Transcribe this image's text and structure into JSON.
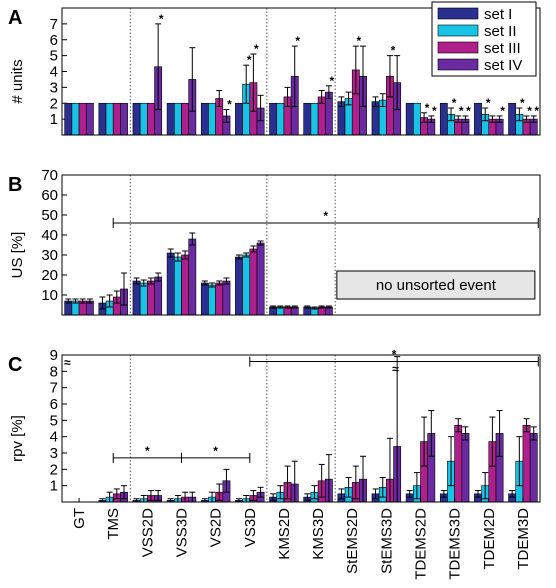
{
  "colors": {
    "set I": "#2b2f8f",
    "set II": "#19c3e6",
    "set III": "#b0208c",
    "set IV": "#6a2aa0",
    "annotation_box": "#e6e6e6"
  },
  "chart_data": [
    {
      "panel": "A",
      "type": "bar",
      "ylabel": "# units",
      "ylim": [
        0,
        8
      ],
      "yticks": [
        1,
        2,
        3,
        4,
        5,
        6,
        7
      ],
      "categories": [
        "GT",
        "TMS",
        "VSS2D",
        "VSS3D",
        "VS2D",
        "VS3D",
        "KMS2D",
        "KMS3D",
        "StEMS2D",
        "StEMS3D",
        "TDEMS2D",
        "TDEMS3D",
        "TDEM2D",
        "TDEM3D"
      ],
      "legend": {
        "position": "top-right",
        "entries": [
          "set I",
          "set II",
          "set III",
          "set IV"
        ]
      },
      "series": [
        {
          "name": "set I",
          "values": [
            2,
            2,
            2,
            2,
            2,
            2,
            2,
            2,
            2.1,
            2.1,
            2,
            2,
            2,
            2
          ],
          "errors": [
            0,
            0,
            0,
            0,
            0,
            0,
            0,
            0,
            0.3,
            0.3,
            0,
            0,
            0,
            0
          ]
        },
        {
          "name": "set II",
          "values": [
            2,
            2,
            2,
            2,
            2,
            3.2,
            2,
            2,
            2.3,
            2.2,
            2,
            1.3,
            1.3,
            1.3
          ],
          "errors": [
            0,
            0,
            0,
            0,
            0,
            1.2,
            0,
            0,
            0.4,
            0.4,
            0,
            0.4,
            0.4,
            0.4
          ]
        },
        {
          "name": "set III",
          "values": [
            2,
            2,
            2,
            2,
            2.3,
            3.3,
            2.4,
            2.4,
            4.1,
            3.7,
            1.1,
            1,
            1,
            1
          ],
          "errors": [
            0,
            0,
            0,
            0,
            0.5,
            1.8,
            0.6,
            0.4,
            1.5,
            1.3,
            0.3,
            0.2,
            0.2,
            0.2
          ]
        },
        {
          "name": "set IV",
          "values": [
            2,
            2,
            4.3,
            3.5,
            1.2,
            1.7,
            3.7,
            2.7,
            3.7,
            3.3,
            1,
            1,
            1,
            1
          ],
          "errors": [
            0,
            0,
            2.7,
            2,
            0.4,
            0.8,
            1.9,
            0.4,
            1.9,
            1.7,
            0.2,
            0.2,
            0.2,
            0.2
          ]
        }
      ],
      "significance_stars": [
        {
          "category": "VSS2D",
          "series": "set IV"
        },
        {
          "category": "VS2D",
          "series": "set IV"
        },
        {
          "category": "VS3D",
          "series": "set II"
        },
        {
          "category": "VS3D",
          "series": "set III"
        },
        {
          "category": "KMS2D",
          "series": "set IV"
        },
        {
          "category": "KMS3D",
          "series": "set IV"
        },
        {
          "category": "StEMS2D",
          "series": "set III"
        },
        {
          "category": "StEMS3D",
          "series": "set III"
        },
        {
          "category": "TDEMS2D",
          "series": "set III"
        },
        {
          "category": "TDEMS2D",
          "series": "set IV"
        },
        {
          "category": "TDEMS3D",
          "series": "set II"
        },
        {
          "category": "TDEMS3D",
          "series": "set III"
        },
        {
          "category": "TDEMS3D",
          "series": "set IV"
        },
        {
          "category": "TDEM2D",
          "series": "set II"
        },
        {
          "category": "TDEM2D",
          "series": "set IV"
        },
        {
          "category": "TDEM3D",
          "series": "set II"
        },
        {
          "category": "TDEM3D",
          "series": "set III"
        },
        {
          "category": "TDEM3D",
          "series": "set IV"
        }
      ]
    },
    {
      "panel": "B",
      "type": "bar",
      "ylabel": "US [%]",
      "ylim": [
        0,
        70
      ],
      "yticks": [
        10,
        20,
        30,
        40,
        50,
        60,
        70
      ],
      "categories": [
        "GT",
        "TMS",
        "VSS2D",
        "VSS3D",
        "VS2D",
        "VS3D",
        "KMS2D",
        "KMS3D",
        "StEMS2D",
        "StEMS3D",
        "TDEMS2D",
        "TDEMS3D",
        "TDEM2D",
        "TDEM3D"
      ],
      "series": [
        {
          "name": "set I",
          "values": [
            7,
            6,
            17,
            31,
            16,
            29,
            4,
            4,
            0,
            0,
            0,
            0,
            0,
            0
          ],
          "errors": [
            1,
            3,
            1.5,
            2,
            1,
            1,
            0.5,
            0.5,
            0,
            0,
            0,
            0,
            0,
            0
          ]
        },
        {
          "name": "set II",
          "values": [
            7,
            7,
            16,
            29,
            15,
            30,
            4,
            3.5,
            0,
            0,
            0,
            0,
            0,
            0
          ],
          "errors": [
            1,
            3,
            1.5,
            2,
            1,
            1,
            0.5,
            0.5,
            0,
            0,
            0,
            0,
            0,
            0
          ]
        },
        {
          "name": "set III",
          "values": [
            7,
            9,
            17,
            30,
            16,
            33,
            4,
            4,
            0,
            0,
            0,
            0,
            0,
            0
          ],
          "errors": [
            1,
            3,
            1.5,
            2,
            1,
            1.5,
            0.5,
            0.5,
            0,
            0,
            0,
            0,
            0,
            0
          ]
        },
        {
          "name": "set IV",
          "values": [
            7,
            13,
            19,
            38,
            17,
            36,
            4,
            4,
            0,
            0,
            0,
            0,
            0,
            0
          ],
          "errors": [
            1,
            8,
            2,
            3,
            1.5,
            1,
            0.5,
            0.5,
            0,
            0,
            0,
            0,
            0,
            0
          ]
        }
      ],
      "annotation": "no unsorted event",
      "significance_bracket": {
        "from": "TMS",
        "to": "TDEM3D",
        "label": "*"
      }
    },
    {
      "panel": "C",
      "type": "bar",
      "ylabel": "rpv [%]",
      "ylim": [
        0,
        9
      ],
      "yticks": [
        1,
        2,
        3,
        4,
        5,
        6,
        7,
        8,
        9
      ],
      "categories": [
        "GT",
        "TMS",
        "VSS2D",
        "VSS3D",
        "VS2D",
        "VS3D",
        "KMS2D",
        "KMS3D",
        "StEMS2D",
        "StEMS3D",
        "TDEMS2D",
        "TDEMS3D",
        "TDEM2D",
        "TDEM3D"
      ],
      "series": [
        {
          "name": "set I",
          "values": [
            0,
            0.1,
            0.1,
            0.1,
            0.1,
            0.1,
            0.3,
            0.3,
            0.5,
            0.5,
            0.5,
            0.5,
            0.5,
            0.5
          ],
          "errors": [
            0,
            0.1,
            0.1,
            0.1,
            0.1,
            0.1,
            0.2,
            0.2,
            0.3,
            0.3,
            0.2,
            0.2,
            0.2,
            0.2
          ]
        },
        {
          "name": "set II",
          "values": [
            0,
            0.3,
            0.2,
            0.2,
            0.3,
            0.2,
            0.6,
            0.6,
            0.9,
            0.9,
            1.0,
            2.5,
            1.0,
            2.5
          ],
          "errors": [
            0,
            0.3,
            0.2,
            0.2,
            0.3,
            0.2,
            0.4,
            0.4,
            0.6,
            0.6,
            0.8,
            1.5,
            0.8,
            1.5
          ]
        },
        {
          "name": "set III",
          "values": [
            0,
            0.5,
            0.4,
            0.3,
            0.6,
            0.4,
            1.2,
            1.3,
            1.2,
            1.4,
            3.7,
            4.7,
            3.7,
            4.7
          ],
          "errors": [
            0,
            0.3,
            0.3,
            0.3,
            0.5,
            0.3,
            1.0,
            1.0,
            1.0,
            2.5,
            1.5,
            0.4,
            1.5,
            0.4
          ]
        },
        {
          "name": "set IV",
          "values": [
            0,
            0.6,
            0.4,
            0.3,
            1.3,
            0.6,
            1.1,
            1.4,
            1.4,
            3.4,
            4.2,
            4.2,
            4.2,
            4.2
          ],
          "errors": [
            0,
            0.4,
            0.3,
            0.3,
            0.7,
            0.3,
            1.4,
            1.5,
            1.4,
            5.5,
            1.4,
            0.4,
            1.4,
            0.4
          ]
        }
      ],
      "significance_brackets": [
        {
          "from": "TMS",
          "to": "VSS3D",
          "label": "*"
        },
        {
          "from": "VSS3D",
          "to": "VS3D",
          "label": "*"
        },
        {
          "from": "VS3D",
          "to": "TDEM3D",
          "label": "*"
        }
      ],
      "axis_break_symbol": "≈"
    }
  ]
}
